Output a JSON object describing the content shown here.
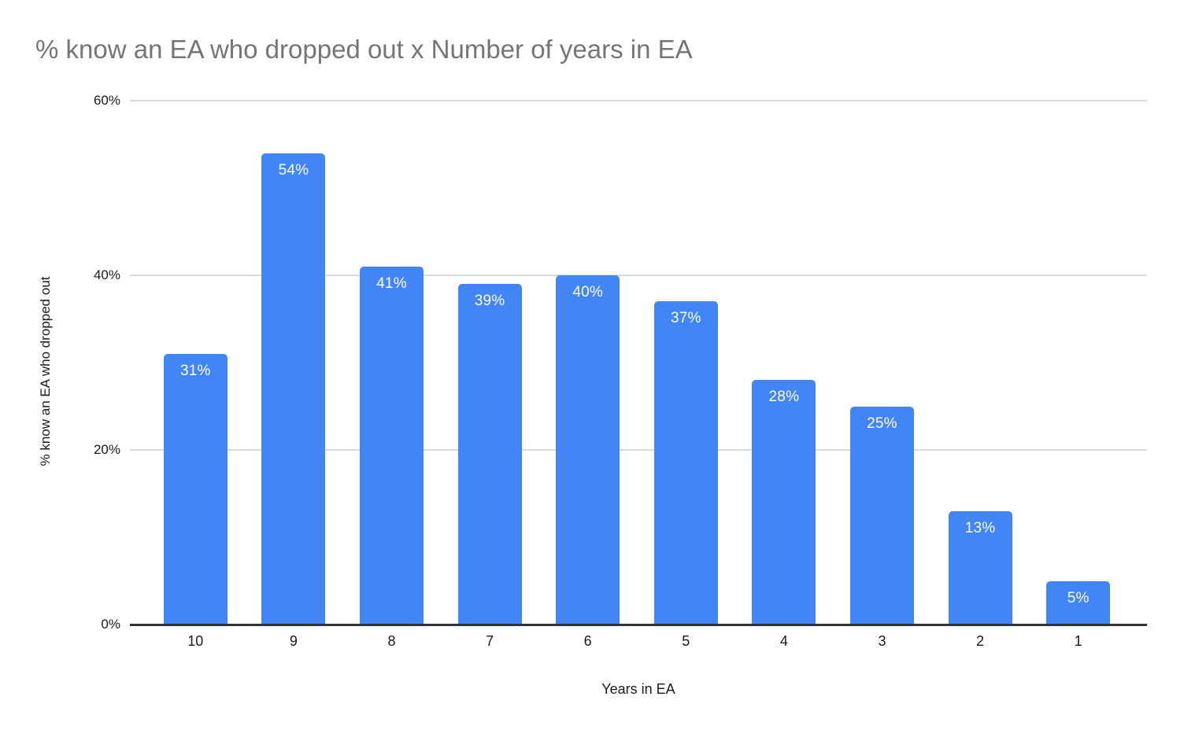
{
  "chart_data": {
    "type": "bar",
    "title": "% know an EA who dropped out x Number of years in EA",
    "xlabel": "Years in EA",
    "ylabel": "% know an EA who dropped out",
    "categories": [
      "10",
      "9",
      "8",
      "7",
      "6",
      "5",
      "4",
      "3",
      "2",
      "1"
    ],
    "values": [
      31,
      54,
      41,
      39,
      40,
      37,
      28,
      25,
      13,
      5
    ],
    "bar_labels": [
      "31%",
      "54%",
      "41%",
      "39%",
      "40%",
      "37%",
      "28%",
      "25%",
      "13%",
      "5%"
    ],
    "ylim": [
      0,
      60
    ],
    "yticks": [
      {
        "value": 0,
        "label": "0%"
      },
      {
        "value": 20,
        "label": "20%"
      },
      {
        "value": 40,
        "label": "40%"
      },
      {
        "value": 60,
        "label": "60%"
      }
    ],
    "grid": true,
    "legend_position": "none",
    "colors": {
      "bar": "#4285f4",
      "bar_label_text": "#ffffff",
      "title_text": "#757575",
      "axis_text": "#1a1a1a",
      "gridline": "#d9d9d9",
      "axis_line": "#333333"
    }
  }
}
